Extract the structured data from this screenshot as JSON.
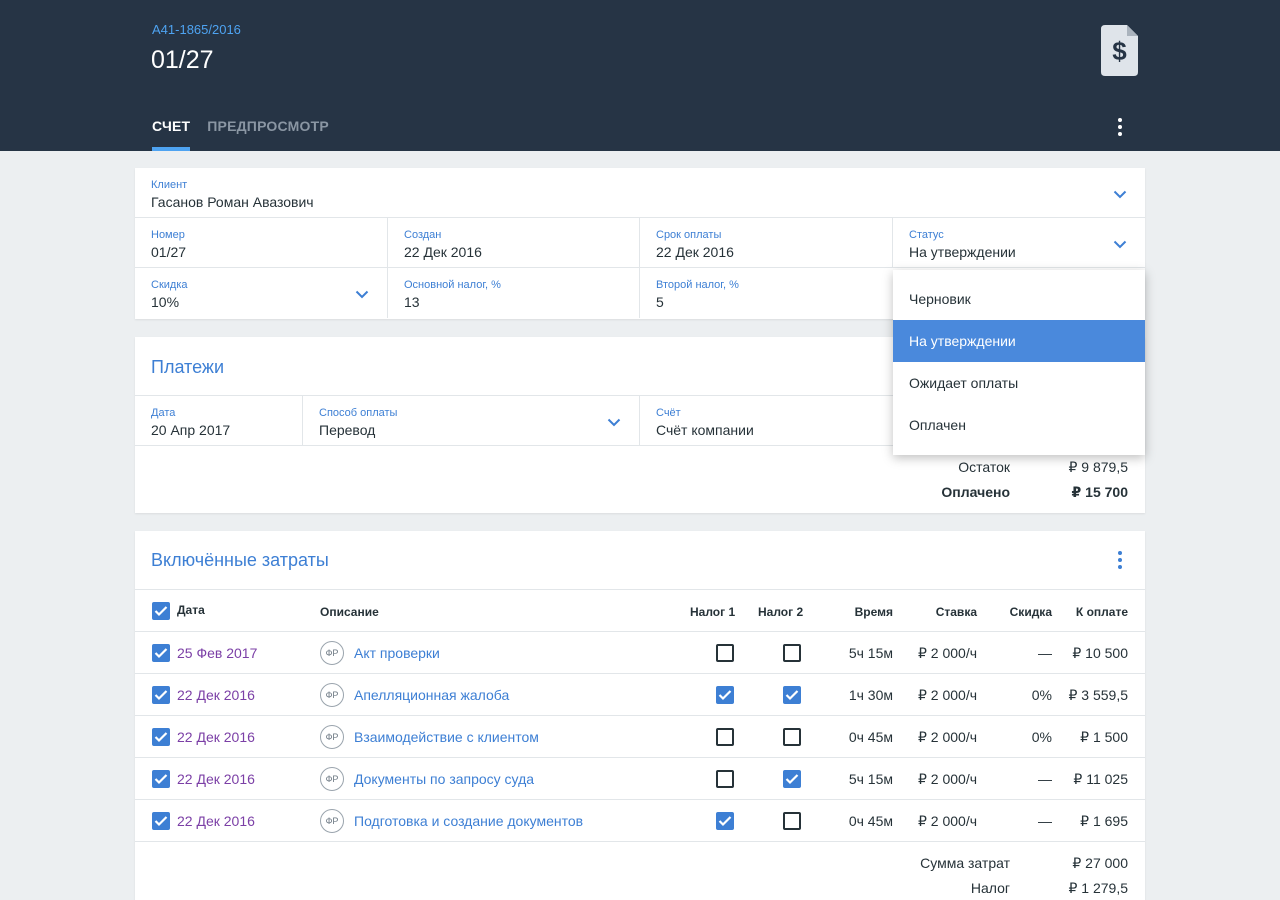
{
  "header": {
    "case_number": "А41-1865/2016",
    "title": "01/27",
    "tabs": [
      {
        "label": "СЧЕТ",
        "active": true
      },
      {
        "label": "ПРЕДПРОСМОТР",
        "active": false
      }
    ],
    "doc_icon": "invoice-dollar-icon",
    "doc_icon_symbol": "$"
  },
  "invoice": {
    "client": {
      "label": "Клиент",
      "value": "Гасанов Роман Авазович"
    },
    "number": {
      "label": "Номер",
      "value": "01/27"
    },
    "created": {
      "label": "Создан",
      "value": "22 Дек 2016"
    },
    "due": {
      "label": "Срок оплаты",
      "value": "22 Дек 2016"
    },
    "status": {
      "label": "Статус",
      "value": "На утверждении"
    },
    "discount": {
      "label": "Скидка",
      "value": "10%"
    },
    "main_tax": {
      "label": "Основной налог, %",
      "value": "13"
    },
    "second_tax": {
      "label": "Второй налог, %",
      "value": "5"
    }
  },
  "status_dropdown": {
    "options": [
      "Черновик",
      "На утверждении",
      "Ожидает оплаты",
      "Оплачен"
    ],
    "selected_index": 1
  },
  "payments": {
    "title": "Платежи",
    "date": {
      "label": "Дата",
      "value": "20 Апр 2017"
    },
    "method": {
      "label": "Способ оплаты",
      "value": "Перевод"
    },
    "account": {
      "label": "Счёт",
      "value": "Счёт компании"
    },
    "balance_label": "Остаток",
    "balance_value": "₽ 9 879,5",
    "paid_label": "Оплачено",
    "paid_value": "₽ 15 700"
  },
  "expenses": {
    "title": "Включённые затраты",
    "columns": {
      "date": "Дата",
      "description": "Описание",
      "tax1": "Налог 1",
      "tax2": "Налог 2",
      "time": "Время",
      "rate": "Ставка",
      "discount": "Скидка",
      "amount": "К оплате"
    },
    "rows": [
      {
        "date": "25 Фев 2017",
        "initials": "ФР",
        "description": "Акт проверки",
        "tax1": false,
        "tax2": false,
        "time": "5ч 15м",
        "rate": "₽ 2 000/ч",
        "discount": "—",
        "amount": "₽ 10 500"
      },
      {
        "date": "22 Дек 2016",
        "initials": "ФР",
        "description": "Апелляционная жалоба",
        "tax1": true,
        "tax2": true,
        "time": "1ч 30м",
        "rate": "₽ 2 000/ч",
        "discount": "0%",
        "amount": "₽ 3 559,5"
      },
      {
        "date": "22 Дек 2016",
        "initials": "ФР",
        "description": "Взаимодействие с клиентом",
        "tax1": false,
        "tax2": false,
        "time": "0ч 45м",
        "rate": "₽ 2 000/ч",
        "discount": "0%",
        "amount": "₽ 1 500"
      },
      {
        "date": "22 Дек 2016",
        "initials": "ФР",
        "description": "Документы по запросу суда",
        "tax1": false,
        "tax2": true,
        "time": "5ч 15м",
        "rate": "₽ 2 000/ч",
        "discount": "—",
        "amount": "₽ 11 025"
      },
      {
        "date": "22 Дек 2016",
        "initials": "ФР",
        "description": "Подготовка и создание документов",
        "tax1": true,
        "tax2": false,
        "time": "0ч 45м",
        "rate": "₽ 2 000/ч",
        "discount": "—",
        "amount": "₽ 1 695"
      }
    ],
    "total_label": "Сумма затрат",
    "total_value": "₽ 27 000",
    "tax_label": "Налог",
    "tax_value": "₽ 1 279,5"
  },
  "colors": {
    "header_bg": "#263445",
    "accent": "#3d7fd4",
    "tab_indicator": "#4ea3f1",
    "date_text": "#7b3fa6",
    "selected_option_bg": "#4a89dc"
  }
}
